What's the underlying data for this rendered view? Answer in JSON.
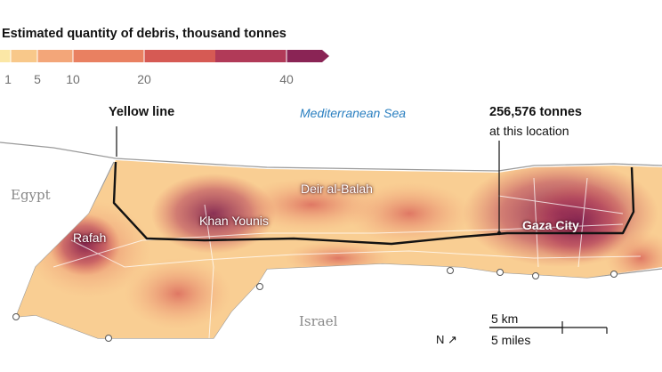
{
  "legend": {
    "title": "Estimated quantity of debris, thousand tonnes",
    "ticks": [
      "1",
      "5",
      "10",
      "20",
      "40"
    ],
    "colors": [
      "#fbe7a6",
      "#f8c88a",
      "#f3a679",
      "#e98061",
      "#d65a54",
      "#b13a58",
      "#8a2455"
    ]
  },
  "map": {
    "sea_label": "Mediterranean Sea",
    "country_labels": {
      "egypt": "Egypt",
      "israel": "Israel"
    },
    "cities": {
      "rafah": "Rafah",
      "khan_younis": "Khan Younis",
      "deir_al_balah": "Deir al-Balah",
      "gaza_city": "Gaza City"
    },
    "annotations": {
      "yellow_line": "Yellow line",
      "tonnes": "256,576 tonnes",
      "at_location": "at this location"
    },
    "scale": {
      "km": "5 km",
      "miles": "5 miles"
    },
    "north": "N ↗"
  }
}
